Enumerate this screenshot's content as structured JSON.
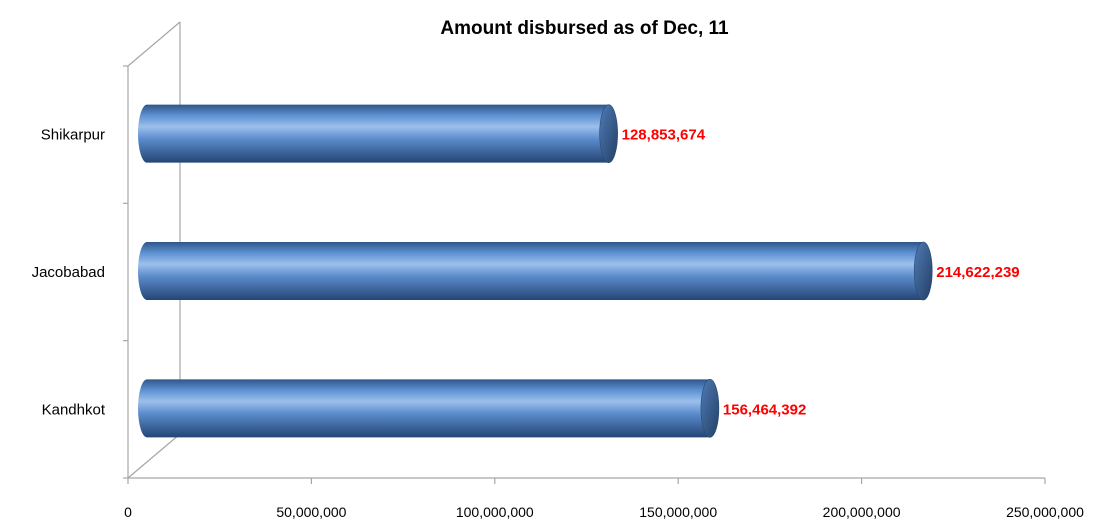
{
  "chart_data": {
    "type": "bar",
    "orientation": "horizontal",
    "title": "Amount disbursed as of Dec, 11",
    "xlabel": "",
    "ylabel": "",
    "categories": [
      "Kandhkot",
      "Jacobabad",
      "Shikarpur"
    ],
    "values": [
      156464392,
      214622239,
      128853674
    ],
    "data_labels": [
      "156,464,392",
      "214,622,239",
      "128,853,674"
    ],
    "xlim": [
      0,
      250000000
    ],
    "x_ticks": [
      0,
      50000000,
      100000000,
      150000000,
      200000000,
      250000000
    ],
    "x_tick_labels": [
      "0",
      "50,000,000",
      "100,000,000",
      "150,000,000",
      "200,000,000",
      "250,000,000"
    ],
    "grid": false,
    "legend": "none",
    "bar_style": "3d-cylinder",
    "colors": {
      "bar": "#4f81bd",
      "bar_light": "#8fb4e3",
      "bar_dark": "#2c4d78",
      "data_label": "#ff0000",
      "axis": "#a6a6a6"
    }
  }
}
